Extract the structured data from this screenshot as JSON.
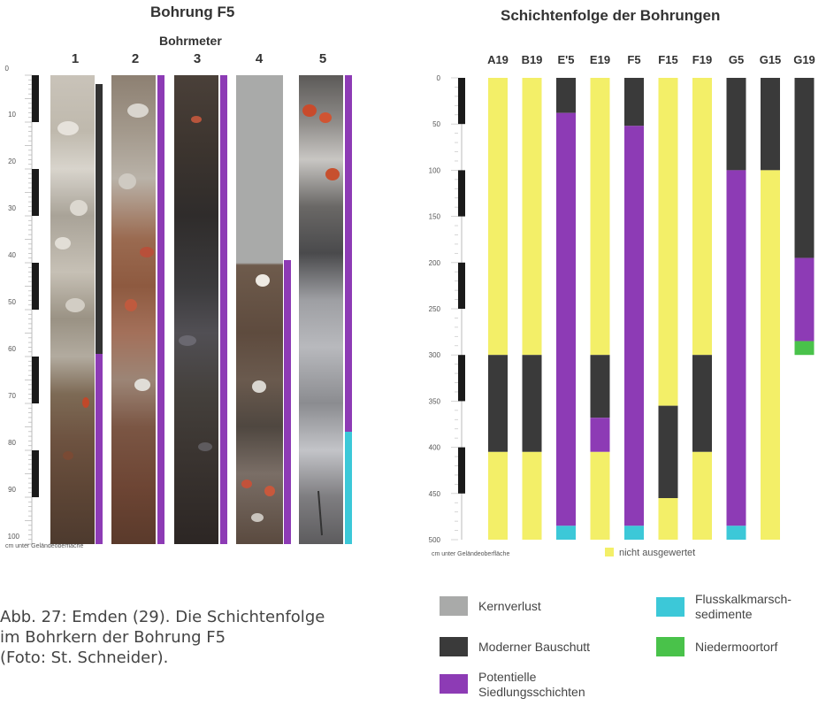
{
  "left_panel": {
    "title": "Bohrung F5",
    "subtitle": "Bohrmeter",
    "core_numbers": [
      "1",
      "2",
      "3",
      "4",
      "5"
    ],
    "axis_ticks": [
      "0",
      "10",
      "20",
      "30",
      "40",
      "50",
      "60",
      "70",
      "80",
      "90",
      "100"
    ],
    "axis_caption": "cm unter Geländeoberfläche",
    "colors": {
      "dark": "#333333",
      "purple": "#8d3bb5",
      "cyan": "#3cc8d8",
      "grey": "#a9aaa9"
    }
  },
  "chart_data": {
    "type": "bar",
    "title": "Schichtenfolge der Bohrungen",
    "axis_caption": "cm unter Geländeoberfläche",
    "y_ticks": [
      "0",
      "50",
      "100",
      "150",
      "200",
      "250",
      "300",
      "350",
      "400",
      "450",
      "500"
    ],
    "ylim": [
      0,
      500
    ],
    "categories": [
      "A19",
      "B19",
      "E'5",
      "E19",
      "F5",
      "F15",
      "F19",
      "G5",
      "G15",
      "G19"
    ],
    "layers": [
      [
        {
          "from": 0,
          "to": 300,
          "type": "nicht ausgewertet"
        },
        {
          "from": 300,
          "to": 405,
          "type": "Moderner Bauschutt"
        },
        {
          "from": 405,
          "to": 500,
          "type": "nicht ausgewertet"
        }
      ],
      [
        {
          "from": 0,
          "to": 300,
          "type": "nicht ausgewertet"
        },
        {
          "from": 300,
          "to": 405,
          "type": "Moderner Bauschutt"
        },
        {
          "from": 405,
          "to": 500,
          "type": "nicht ausgewertet"
        }
      ],
      [
        {
          "from": 0,
          "to": 38,
          "type": "Moderner Bauschutt"
        },
        {
          "from": 38,
          "to": 485,
          "type": "Potentielle Siedlungsschichten"
        },
        {
          "from": 485,
          "to": 500,
          "type": "Flusskalkmarschsedimente"
        }
      ],
      [
        {
          "from": 0,
          "to": 300,
          "type": "nicht ausgewertet"
        },
        {
          "from": 300,
          "to": 368,
          "type": "Moderner Bauschutt"
        },
        {
          "from": 368,
          "to": 405,
          "type": "Potentielle Siedlungsschichten"
        },
        {
          "from": 405,
          "to": 500,
          "type": "nicht ausgewertet"
        }
      ],
      [
        {
          "from": 0,
          "to": 52,
          "type": "Moderner Bauschutt"
        },
        {
          "from": 52,
          "to": 485,
          "type": "Potentielle Siedlungsschichten"
        },
        {
          "from": 485,
          "to": 500,
          "type": "Flusskalkmarschsedimente"
        }
      ],
      [
        {
          "from": 0,
          "to": 355,
          "type": "nicht ausgewertet"
        },
        {
          "from": 355,
          "to": 455,
          "type": "Moderner Bauschutt"
        },
        {
          "from": 455,
          "to": 500,
          "type": "nicht ausgewertet"
        }
      ],
      [
        {
          "from": 0,
          "to": 300,
          "type": "nicht ausgewertet"
        },
        {
          "from": 300,
          "to": 405,
          "type": "Moderner Bauschutt"
        },
        {
          "from": 405,
          "to": 500,
          "type": "nicht ausgewertet"
        }
      ],
      [
        {
          "from": 0,
          "to": 100,
          "type": "Moderner Bauschutt"
        },
        {
          "from": 100,
          "to": 485,
          "type": "Potentielle Siedlungsschichten"
        },
        {
          "from": 485,
          "to": 500,
          "type": "Flusskalkmarschsedimente"
        }
      ],
      [
        {
          "from": 0,
          "to": 100,
          "type": "Moderner Bauschutt"
        },
        {
          "from": 100,
          "to": 500,
          "type": "nicht ausgewertet"
        }
      ],
      [
        {
          "from": 0,
          "to": 195,
          "type": "Moderner Bauschutt"
        },
        {
          "from": 195,
          "to": 285,
          "type": "Potentielle Siedlungsschichten"
        },
        {
          "from": 285,
          "to": 300,
          "type": "Niedermoortorf"
        }
      ]
    ],
    "not_evaluated_label": "nicht ausgewertet",
    "colors": {
      "nicht ausgewertet": "#f3ef68",
      "Moderner Bauschutt": "#3a3a3a",
      "Potentielle Siedlungsschichten": "#8d3bb5",
      "Flusskalkmarschsedimente": "#3cc8d8",
      "Niedermoortorf": "#49c24a",
      "Kernverlust": "#a9aaa9"
    }
  },
  "legend": {
    "items": [
      {
        "label": "Kernverlust",
        "color": "#a9aaa9"
      },
      {
        "label": "Moderner Bauschutt",
        "color": "#3a3a3a"
      },
      {
        "label": "Potentielle Siedlungsschichten",
        "color": "#8d3bb5"
      },
      {
        "label": "Flusskalkmarsch-sedimente",
        "color": "#3cc8d8"
      },
      {
        "label": "Niedermoortorf",
        "color": "#49c24a"
      }
    ],
    "label_lines": {
      "potentielle": [
        "Potentielle",
        "Siedlungsschichten"
      ],
      "fluss": [
        "Flusskalkmarsch-",
        "sedimente"
      ]
    }
  },
  "caption": {
    "line1": "Abb. 27: Emden (29). Die Schichtenfolge",
    "line2": "im Bohrkern der Bohrung F5",
    "line3": "(Foto: St. Schneider)."
  }
}
